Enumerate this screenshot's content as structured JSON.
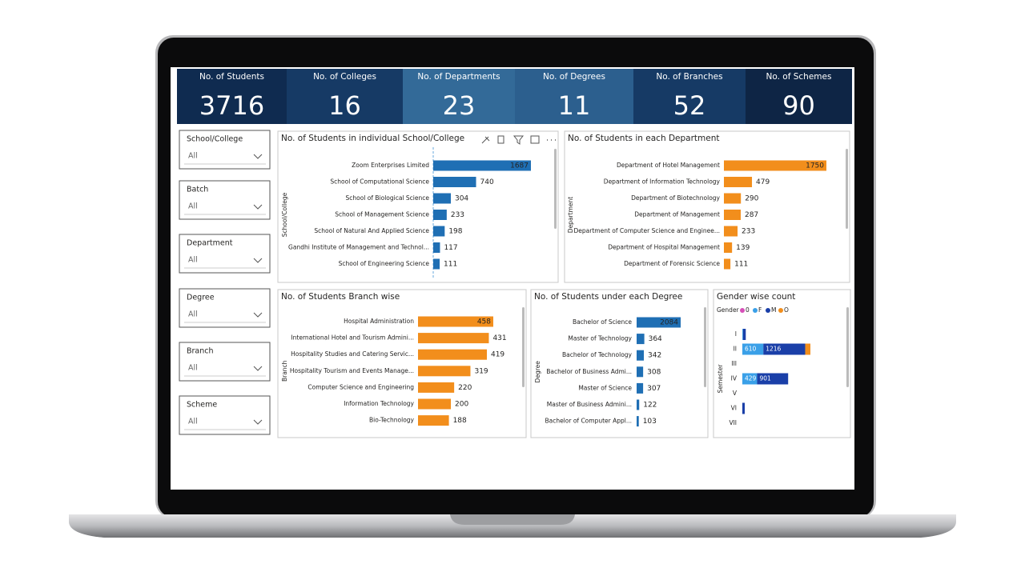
{
  "kpis": [
    {
      "label": "No. of Students",
      "value": 3716,
      "color": "#0f2b50"
    },
    {
      "label": "No. of Colleges",
      "value": 16,
      "color": "#163a65"
    },
    {
      "label": "No. of Departments",
      "value": 23,
      "color": "#336a98"
    },
    {
      "label": "No. of Degrees",
      "value": 11,
      "color": "#2c5f8e"
    },
    {
      "label": "No. of Branches",
      "value": 52,
      "color": "#163a65"
    },
    {
      "label": "No. of Schemes",
      "value": 90,
      "color": "#0e2545"
    }
  ],
  "filters": [
    {
      "label": "School/College",
      "value": "All"
    },
    {
      "label": "Batch",
      "value": "All"
    },
    {
      "label": "Department",
      "value": "All"
    },
    {
      "label": "Degree",
      "value": "All"
    },
    {
      "label": "Branch",
      "value": "All"
    },
    {
      "label": "Scheme",
      "value": "All"
    }
  ],
  "chart_data": [
    {
      "type": "bar",
      "title": "No. of Students in individual School/College",
      "axis_label": "School/College",
      "color": "#1f6fb4",
      "categories": [
        "Zoom Enterprises Limited",
        "School of Computational Science",
        "School of Biological Science",
        "School of Management Science",
        "School of Natural And Applied Science",
        "Gandhi Institute of Management and Technol...",
        "School of Engineering Science"
      ],
      "values": [
        1687,
        740,
        304,
        233,
        198,
        117,
        111
      ]
    },
    {
      "type": "bar",
      "title": "No. of Students in each Department",
      "axis_label": "Department",
      "color": "#f28e1c",
      "categories": [
        "Department of Hotel Management",
        "Department of Information Technology",
        "Department of Biotechnology",
        "Department of Management",
        "Department of Computer Science and Enginee...",
        "Department of Hospital Management",
        "Department of Forensic Science"
      ],
      "values": [
        1750,
        479,
        290,
        287,
        233,
        139,
        111
      ]
    },
    {
      "type": "bar",
      "title": "No. of Students Branch wise",
      "axis_label": "Branch",
      "color": "#f28e1c",
      "categories": [
        "Hospital Administration",
        "International Hotel and Tourism Admini...",
        "Hospitality Studies and Catering Servic...",
        "Hospitality Tourism and Events Manage...",
        "Computer Science and Engineering",
        "Information Technology",
        "Bio-Technology"
      ],
      "values": [
        458,
        431,
        419,
        319,
        220,
        200,
        188
      ]
    },
    {
      "type": "bar",
      "title": "No. of Students under each Degree",
      "axis_label": "Degree",
      "color": "#1f6fb4",
      "categories": [
        "Bachelor of Science",
        "Master of Technology",
        "Bachelor of Technology",
        "Bachelor of Business Admi...",
        "Master of Science",
        "Master of Business Admini...",
        "Bachelor of Computer Appl..."
      ],
      "values": [
        2084,
        364,
        342,
        308,
        307,
        122,
        103
      ]
    },
    {
      "type": "stacked_bar",
      "title": "Gender wise count",
      "legend_title": "Gender",
      "axis_label": "Semester",
      "categories": [
        "I",
        "II",
        "III",
        "IV",
        "V",
        "VI",
        "VII"
      ],
      "series": [
        {
          "name": "0",
          "color": "#d64fb8",
          "values": [
            0,
            0,
            0,
            0,
            0,
            0,
            0
          ]
        },
        {
          "name": "F",
          "color": "#3aa0e8",
          "values": [
            20,
            610,
            0,
            429,
            0,
            0,
            0
          ]
        },
        {
          "name": "M",
          "color": "#1a3fa8",
          "values": [
            80,
            1216,
            0,
            901,
            0,
            70,
            0
          ]
        },
        {
          "name": "O",
          "color": "#f28e1c",
          "values": [
            0,
            150,
            0,
            0,
            0,
            0,
            0
          ]
        }
      ]
    }
  ]
}
